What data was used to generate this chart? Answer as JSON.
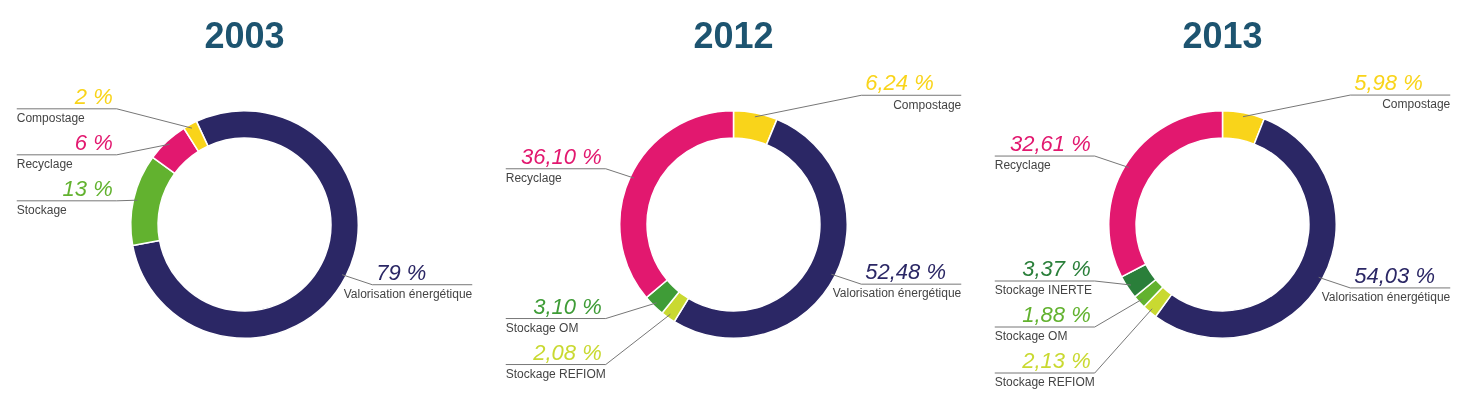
{
  "chart_data": [
    {
      "type": "donut",
      "title": "2003",
      "categories": [
        "Valorisation énergétique",
        "Stockage",
        "Recyclage",
        "Compostage"
      ],
      "values": [
        79,
        13,
        6,
        2
      ],
      "value_labels": [
        "79 %",
        "13 %",
        "6 %",
        "2 %"
      ],
      "colors": [
        "#2b2765",
        "#62b22f",
        "#e2186f",
        "#f9d41a"
      ]
    },
    {
      "type": "donut",
      "title": "2012",
      "categories": [
        "Compostage",
        "Valorisation énergétique",
        "Stockage REFIOM",
        "Stockage OM",
        "Recyclage"
      ],
      "values": [
        6.24,
        52.48,
        2.08,
        3.1,
        36.1
      ],
      "value_labels": [
        "6,24 %",
        "52,48 %",
        "2,08 %",
        "3,10 %",
        "36,10 %"
      ],
      "colors": [
        "#f9d41a",
        "#2b2765",
        "#c9d931",
        "#3f9c37",
        "#e2186f"
      ]
    },
    {
      "type": "donut",
      "title": "2013",
      "categories": [
        "Compostage",
        "Valorisation énergétique",
        "Stockage REFIOM",
        "Stockage OM",
        "Stockage INERTE",
        "Recyclage"
      ],
      "values": [
        5.98,
        54.03,
        2.13,
        1.88,
        3.37,
        32.61
      ],
      "value_labels": [
        "5,98 %",
        "54,03 %",
        "2,13 %",
        "1,88 %",
        "3,37 %",
        "32,61 %"
      ],
      "colors": [
        "#f9d41a",
        "#2b2765",
        "#c9d931",
        "#62b22f",
        "#2a7f3a",
        "#e2186f"
      ]
    }
  ]
}
